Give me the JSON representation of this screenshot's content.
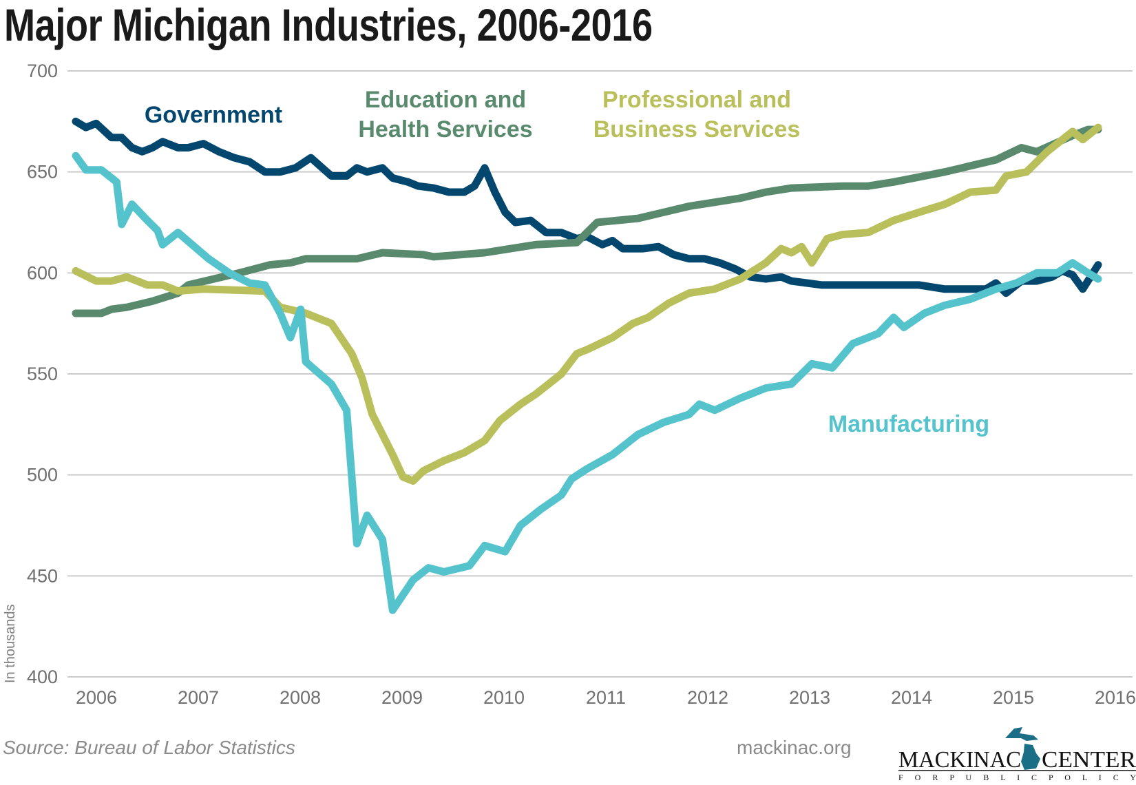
{
  "chart_data": {
    "type": "line",
    "title": "Major Michigan Industries, 2006-2016",
    "ylabel": "In thousands",
    "xlabel": "",
    "ylim": [
      400,
      700
    ],
    "xlim": [
      2006,
      2016
    ],
    "yticks": [
      400,
      450,
      500,
      550,
      600,
      650,
      700
    ],
    "xticks": [
      "2006",
      "2007",
      "2008",
      "2009",
      "2010",
      "2011",
      "2012",
      "2013",
      "2014",
      "2015",
      "2016"
    ],
    "grid": "horizontal",
    "legend": "inline labels",
    "series": [
      {
        "name": "Government",
        "color": "#03476e",
        "x": [
          2006.0,
          2006.1,
          2006.2,
          2006.35,
          2006.45,
          2006.55,
          2006.65,
          2006.75,
          2006.85,
          2007.0,
          2007.1,
          2007.25,
          2007.4,
          2007.55,
          2007.7,
          2007.85,
          2008.0,
          2008.15,
          2008.3,
          2008.5,
          2008.65,
          2008.75,
          2008.85,
          2009.0,
          2009.1,
          2009.25,
          2009.35,
          2009.5,
          2009.65,
          2009.8,
          2009.9,
          2010.0,
          2010.1,
          2010.2,
          2010.3,
          2010.45,
          2010.6,
          2010.75,
          2010.9,
          2011.0,
          2011.15,
          2011.25,
          2011.35,
          2011.55,
          2011.7,
          2011.85,
          2012.0,
          2012.15,
          2012.3,
          2012.45,
          2012.6,
          2012.75,
          2012.9,
          2013.0,
          2013.15,
          2013.3,
          2013.6,
          2014.0,
          2014.25,
          2014.5,
          2014.75,
          2014.9,
          2015.0,
          2015.1,
          2015.25,
          2015.4,
          2015.55,
          2015.65,
          2015.75,
          2015.85,
          2016.0
        ],
        "values": [
          675,
          672,
          674,
          667,
          667,
          662,
          660,
          662,
          665,
          662,
          662,
          664,
          660,
          657,
          655,
          650,
          650,
          652,
          657,
          648,
          648,
          652,
          650,
          652,
          647,
          645,
          643,
          642,
          640,
          640,
          643,
          652,
          640,
          630,
          625,
          626,
          620,
          620,
          617,
          618,
          614,
          616,
          612,
          612,
          613,
          609,
          607,
          607,
          605,
          602,
          598,
          597,
          598,
          596,
          595,
          594,
          594,
          594,
          594,
          592,
          592,
          592,
          595,
          590,
          596,
          596,
          598,
          601,
          599,
          592,
          604
        ]
      },
      {
        "name": "Education and Health Services",
        "color": "#5a8a6e",
        "x": [
          2006.0,
          2006.25,
          2006.35,
          2006.5,
          2006.75,
          2007.0,
          2007.1,
          2007.35,
          2007.6,
          2007.9,
          2008.1,
          2008.25,
          2008.75,
          2009.0,
          2009.4,
          2009.5,
          2010.0,
          2010.5,
          2010.9,
          2011.0,
          2011.1,
          2011.5,
          2011.75,
          2012.0,
          2012.5,
          2012.75,
          2013.0,
          2013.5,
          2013.75,
          2014.0,
          2014.5,
          2014.75,
          2015.0,
          2015.25,
          2015.4,
          2015.75,
          2015.9,
          2016.0
        ],
        "values": [
          580,
          580,
          582,
          583,
          586,
          590,
          594,
          597,
          600,
          604,
          605,
          607,
          607,
          610,
          609,
          608,
          610,
          614,
          615,
          620,
          625,
          627,
          630,
          633,
          637,
          640,
          642,
          643,
          643,
          645,
          650,
          653,
          656,
          662,
          660,
          668,
          671,
          671
        ]
      },
      {
        "name": "Professional and Business Services",
        "color": "#b9bf5a",
        "x": [
          2006.0,
          2006.2,
          2006.35,
          2006.5,
          2006.7,
          2006.85,
          2007.0,
          2007.25,
          2007.85,
          2008.0,
          2008.25,
          2008.5,
          2008.7,
          2008.8,
          2008.9,
          2009.1,
          2009.2,
          2009.3,
          2009.4,
          2009.6,
          2009.8,
          2010.0,
          2010.15,
          2010.35,
          2010.5,
          2010.75,
          2010.9,
          2011.0,
          2011.25,
          2011.45,
          2011.6,
          2011.8,
          2012.0,
          2012.25,
          2012.5,
          2012.75,
          2012.9,
          2013.0,
          2013.1,
          2013.2,
          2013.35,
          2013.5,
          2013.75,
          2014.0,
          2014.25,
          2014.5,
          2014.75,
          2015.0,
          2015.1,
          2015.3,
          2015.5,
          2015.75,
          2015.85,
          2016.0
        ],
        "values": [
          601,
          596,
          596,
          598,
          594,
          594,
          591,
          592,
          591,
          583,
          580,
          575,
          560,
          548,
          530,
          510,
          499,
          497,
          502,
          507,
          511,
          517,
          527,
          535,
          540,
          550,
          560,
          562,
          568,
          575,
          578,
          585,
          590,
          592,
          597,
          605,
          612,
          610,
          613,
          605,
          617,
          619,
          620,
          626,
          630,
          634,
          640,
          641,
          648,
          650,
          660,
          670,
          666,
          672
        ]
      },
      {
        "name": "Manufacturing",
        "color": "#55c3cb",
        "x": [
          2006.0,
          2006.1,
          2006.25,
          2006.4,
          2006.45,
          2006.55,
          2006.7,
          2006.8,
          2006.85,
          2007.0,
          2007.3,
          2007.5,
          2007.7,
          2007.85,
          2008.0,
          2008.1,
          2008.2,
          2008.25,
          2008.5,
          2008.65,
          2008.75,
          2008.85,
          2009.0,
          2009.1,
          2009.3,
          2009.45,
          2009.6,
          2009.85,
          2010.0,
          2010.2,
          2010.35,
          2010.55,
          2010.75,
          2010.85,
          2011.0,
          2011.25,
          2011.5,
          2011.75,
          2012.0,
          2012.1,
          2012.25,
          2012.5,
          2012.75,
          2013.0,
          2013.2,
          2013.4,
          2013.6,
          2013.85,
          2014.0,
          2014.1,
          2014.3,
          2014.5,
          2014.75,
          2015.0,
          2015.2,
          2015.4,
          2015.6,
          2015.75,
          2015.9,
          2016.0
        ],
        "values": [
          658,
          651,
          651,
          645,
          624,
          634,
          626,
          621,
          614,
          620,
          607,
          600,
          595,
          594,
          580,
          568,
          582,
          556,
          545,
          532,
          466,
          480,
          468,
          433,
          448,
          454,
          452,
          455,
          465,
          462,
          475,
          483,
          490,
          498,
          503,
          510,
          520,
          526,
          530,
          535,
          532,
          538,
          543,
          545,
          555,
          553,
          565,
          570,
          578,
          573,
          580,
          584,
          587,
          592,
          595,
          600,
          600,
          605,
          600,
          597
        ]
      }
    ],
    "annotations": {
      "government": "Government",
      "education_1": "Education and",
      "education_2": "Health Services",
      "professional_1": "Professional and",
      "professional_2": "Business Services",
      "manufacturing": "Manufacturing"
    }
  },
  "footer": {
    "source": "Source: Bureau of Labor Statistics",
    "site": "mackinac.org",
    "logo_text": "MACKINAC CENTER FOR PUBLIC POLICY"
  }
}
